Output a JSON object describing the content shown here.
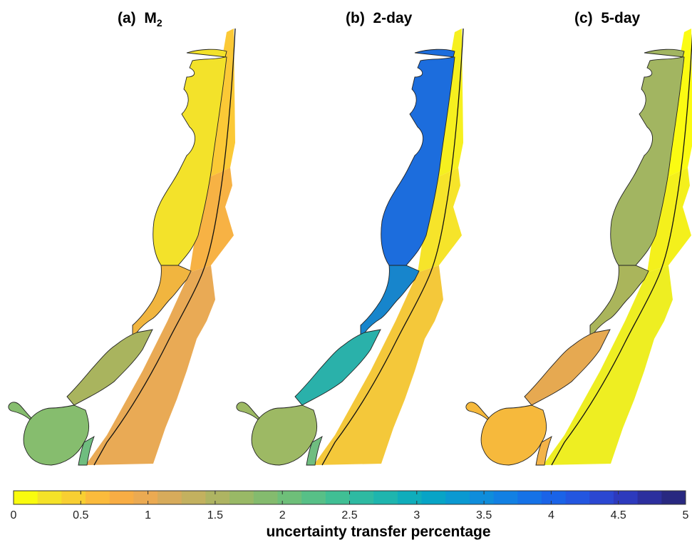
{
  "panels": [
    {
      "label": "(a)",
      "title_main": "M",
      "title_sub": "2",
      "colors": {
        "ocean_upper": "#fbc936",
        "ocean_mid": "#f7b244",
        "ocean_lower": "#e9aa55",
        "bay_upper": "#f3e22a",
        "bay_mid": "#f1b53f",
        "bay_lower": "#a9b45e",
        "bay_south": "#86bd6e",
        "inlet": "#6fbd7f"
      }
    },
    {
      "label": "(b)",
      "title_main": "2-day",
      "title_sub": "",
      "colors": {
        "ocean_upper": "#f6f01f",
        "ocean_mid": "#f6e42a",
        "ocean_lower": "#f4c83a",
        "bay_upper": "#1c6ddd",
        "bay_mid": "#1785cc",
        "bay_lower": "#2ab1aa",
        "bay_south": "#9db964",
        "inlet": "#6fbd80"
      }
    },
    {
      "label": "(c)",
      "title_main": "5-day",
      "title_sub": "",
      "colors": {
        "ocean_upper": "#fbfb12",
        "ocean_mid": "#f4f01c",
        "ocean_lower": "#eeee22",
        "bay_upper": "#a2b561",
        "bay_mid": "#aab55b",
        "bay_lower": "#e6a951",
        "bay_south": "#f6b93c",
        "inlet": "#f3b348"
      }
    }
  ],
  "colorbar": {
    "title": "uncertainty transfer percentage",
    "min": 0,
    "max": 5,
    "ticks": [
      "0",
      "0.5",
      "1",
      "1.5",
      "2",
      "2.5",
      "3",
      "3.5",
      "4",
      "4.5",
      "5"
    ],
    "colors": [
      "#f9fb0e",
      "#f5e228",
      "#f8cf32",
      "#fbbb3c",
      "#f8ad44",
      "#ebaa52",
      "#d7ab5b",
      "#c3b15f",
      "#aeb462",
      "#99b966",
      "#84bb6e",
      "#6ebf79",
      "#57c087",
      "#40bf94",
      "#2ebaa2",
      "#1eb5ae",
      "#0fadbb",
      "#07a4c6",
      "#0a99d1",
      "#0f8ddb",
      "#1280e3",
      "#1572e7",
      "#1a63e7",
      "#2356e0",
      "#2b47d1",
      "#2d3abd",
      "#2c2f9e",
      "#282880"
    ]
  }
}
